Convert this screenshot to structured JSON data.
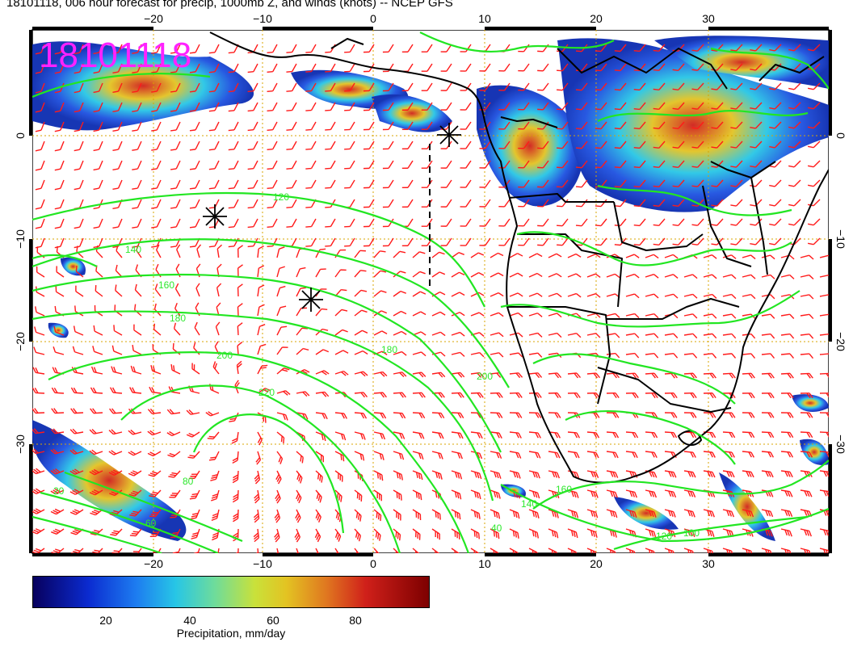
{
  "title": "18101118, 006 hour forecast for precip, 1000mb Z, and winds (knots) -- NCEP GFS",
  "stamp": "18101118",
  "axes": {
    "lon_ticks": [
      "−20",
      "−10",
      "0",
      "10",
      "20",
      "30"
    ],
    "lat_ticks": [
      "0",
      "−10",
      "−20",
      "−30"
    ]
  },
  "contour_labels": [
    "120",
    "140",
    "160",
    "180",
    "200",
    "220",
    "200",
    "180",
    "160",
    "140",
    "120",
    "100",
    "80",
    "60",
    "40",
    "20"
  ],
  "colorbar": {
    "ticks": [
      "20",
      "40",
      "60",
      "80"
    ],
    "label": "Precipitation, mm/day"
  },
  "colors": {
    "contour": "#22e622",
    "wind": "#ff1a1a",
    "stamp": "#ff22ff",
    "grid": "#d9a400",
    "coast": "#000000"
  }
}
